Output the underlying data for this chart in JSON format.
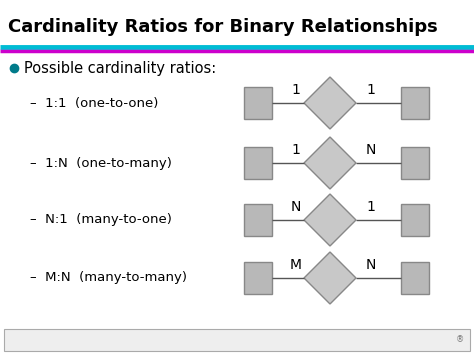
{
  "title": "Cardinality Ratios for Binary Relationships",
  "title_fontsize": 13,
  "title_fontweight": "bold",
  "bg_color": "#ffffff",
  "line1_color": "#00bcd4",
  "line2_color": "#cc00cc",
  "bullet_color": "#007b8a",
  "bullet_text": "Possible cardinality ratios:",
  "sub_items": [
    {
      "label": "1:1  (one-to-one)",
      "left_label": "1",
      "right_label": "1",
      "row": 0
    },
    {
      "label": "1:N  (one-to-many)",
      "left_label": "1",
      "right_label": "N",
      "row": 1
    },
    {
      "label": "N:1  (many-to-one)",
      "left_label": "N",
      "right_label": "1",
      "row": 2
    },
    {
      "label": "M:N  (many-to-many)",
      "left_label": "M",
      "right_label": "N",
      "row": 3
    }
  ],
  "rect_color": "#b8b8b8",
  "rect_edge": "#888888",
  "diamond_color": "#c8c8c8",
  "diamond_edge": "#888888",
  "text_color": "#000000",
  "footer_box_color": "#eeeeee",
  "footer_box_edge": "#aaaaaa",
  "figw": 4.74,
  "figh": 3.55,
  "dpi": 100
}
